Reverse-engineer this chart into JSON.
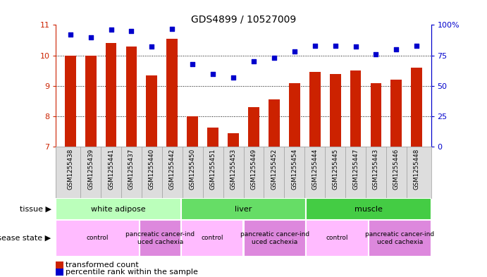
{
  "title": "GDS4899 / 10527009",
  "samples": [
    "GSM1255438",
    "GSM1255439",
    "GSM1255441",
    "GSM1255437",
    "GSM1255440",
    "GSM1255442",
    "GSM1255450",
    "GSM1255451",
    "GSM1255453",
    "GSM1255449",
    "GSM1255452",
    "GSM1255454",
    "GSM1255444",
    "GSM1255445",
    "GSM1255447",
    "GSM1255443",
    "GSM1255446",
    "GSM1255448"
  ],
  "transformed_count": [
    10.0,
    10.0,
    10.4,
    10.3,
    9.35,
    10.55,
    8.0,
    7.62,
    7.45,
    8.3,
    8.55,
    9.1,
    9.45,
    9.4,
    9.5,
    9.1,
    9.2,
    9.6
  ],
  "percentile_rank": [
    92,
    90,
    96,
    95,
    82,
    97,
    68,
    60,
    57,
    70,
    73,
    78,
    83,
    83,
    82,
    76,
    80,
    83
  ],
  "bar_color": "#cc2200",
  "dot_color": "#0000cc",
  "ylim_left": [
    7,
    11
  ],
  "ylim_right": [
    0,
    100
  ],
  "yticks_left": [
    7,
    8,
    9,
    10,
    11
  ],
  "yticks_right": [
    0,
    25,
    50,
    75,
    100
  ],
  "grid_yticks": [
    8,
    9,
    10
  ],
  "tissue_groups": [
    {
      "label": "white adipose",
      "start": 0,
      "end": 6,
      "color": "#bbffbb"
    },
    {
      "label": "liver",
      "start": 6,
      "end": 12,
      "color": "#66dd66"
    },
    {
      "label": "muscle",
      "start": 12,
      "end": 18,
      "color": "#44cc44"
    }
  ],
  "disease_groups": [
    {
      "label": "control",
      "start": 0,
      "end": 4,
      "color": "#ffbbff"
    },
    {
      "label": "pancreatic cancer-ind\nuced cachexia",
      "start": 4,
      "end": 6,
      "color": "#dd88dd"
    },
    {
      "label": "control",
      "start": 6,
      "end": 9,
      "color": "#ffbbff"
    },
    {
      "label": "pancreatic cancer-ind\nuced cachexia",
      "start": 9,
      "end": 12,
      "color": "#dd88dd"
    },
    {
      "label": "control",
      "start": 12,
      "end": 15,
      "color": "#ffbbff"
    },
    {
      "label": "pancreatic cancer-ind\nuced cachexia",
      "start": 15,
      "end": 18,
      "color": "#dd88dd"
    }
  ],
  "legend_bar_label": "transformed count",
  "legend_dot_label": "percentile rank within the sample",
  "tissue_label": "tissue",
  "disease_label": "disease state",
  "right_axis_color": "#0000cc",
  "left_axis_color": "#cc2200",
  "bar_width": 0.55,
  "bg_color": "#ffffff",
  "xlabel_bg": "#dddddd",
  "xlabel_border": "#999999"
}
